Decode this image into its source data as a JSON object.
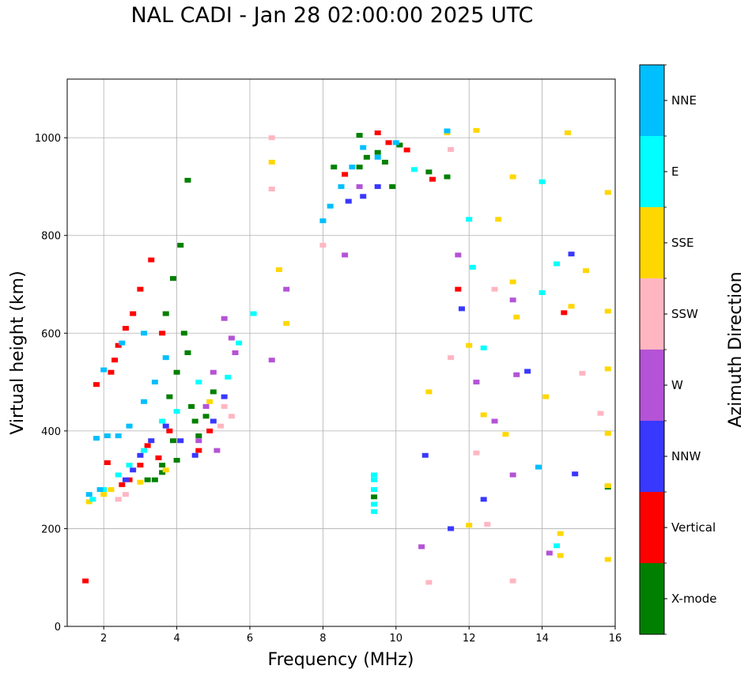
{
  "chart_data": {
    "type": "scatter",
    "title": "NAL CADI - Jan 28 02:00:00 2025 UTC",
    "xlabel": "Frequency (MHz)",
    "ylabel": "Virtual height (km)",
    "xlim": [
      1,
      16
    ],
    "ylim": [
      0,
      1120
    ],
    "xticks": [
      2,
      4,
      6,
      8,
      10,
      12,
      14,
      16
    ],
    "yticks": [
      0,
      200,
      400,
      600,
      800,
      1000
    ],
    "grid": true,
    "colorbar": {
      "label": "Azimuth Direction",
      "categories": [
        "X-mode",
        "Vertical",
        "NNW",
        "W",
        "SSW",
        "SSE",
        "E",
        "NNE"
      ],
      "colors": [
        "#008000",
        "#ff0000",
        "#3838ff",
        "#b453d6",
        "#ffb6c1",
        "#ffd700",
        "#00ffff",
        "#00bfff"
      ]
    },
    "series": [
      {
        "name": "X-mode",
        "points": [
          [
            4.1,
            780
          ],
          [
            3.9,
            712
          ],
          [
            3.7,
            640
          ],
          [
            4.2,
            600
          ],
          [
            4.3,
            560
          ],
          [
            4.0,
            520
          ],
          [
            3.8,
            470
          ],
          [
            4.4,
            450
          ],
          [
            4.5,
            420
          ],
          [
            3.9,
            380
          ],
          [
            3.6,
            330
          ],
          [
            3.4,
            300
          ],
          [
            3.2,
            300
          ],
          [
            3.6,
            315
          ],
          [
            4.0,
            340
          ],
          [
            4.6,
            390
          ],
          [
            4.8,
            430
          ],
          [
            5.0,
            480
          ],
          [
            9.0,
            940
          ],
          [
            9.2,
            960
          ],
          [
            9.5,
            970
          ],
          [
            9.7,
            950
          ],
          [
            10.1,
            985
          ],
          [
            9.9,
            900
          ],
          [
            8.3,
            940
          ],
          [
            9.0,
            1005
          ],
          [
            4.3,
            913
          ],
          [
            11.4,
            920
          ],
          [
            10.9,
            930
          ],
          [
            15.8,
            285
          ],
          [
            9.4,
            265
          ]
        ]
      },
      {
        "name": "Vertical",
        "points": [
          [
            1.5,
            93
          ],
          [
            3.3,
            750
          ],
          [
            3.0,
            690
          ],
          [
            2.8,
            640
          ],
          [
            2.6,
            610
          ],
          [
            2.4,
            575
          ],
          [
            2.3,
            545
          ],
          [
            2.2,
            520
          ],
          [
            1.8,
            495
          ],
          [
            2.1,
            335
          ],
          [
            2.5,
            290
          ],
          [
            2.7,
            300
          ],
          [
            3.0,
            330
          ],
          [
            3.2,
            370
          ],
          [
            3.5,
            345
          ],
          [
            3.8,
            400
          ],
          [
            4.6,
            360
          ],
          [
            4.9,
            400
          ],
          [
            3.6,
            600
          ],
          [
            9.5,
            1010
          ],
          [
            9.8,
            990
          ],
          [
            10.3,
            975
          ],
          [
            11.0,
            915
          ],
          [
            8.6,
            925
          ],
          [
            11.7,
            690
          ],
          [
            14.6,
            642
          ]
        ]
      },
      {
        "name": "NNW",
        "points": [
          [
            2.6,
            300
          ],
          [
            2.8,
            320
          ],
          [
            3.0,
            350
          ],
          [
            3.3,
            380
          ],
          [
            3.7,
            410
          ],
          [
            4.1,
            380
          ],
          [
            4.5,
            350
          ],
          [
            5.0,
            420
          ],
          [
            5.3,
            470
          ],
          [
            8.7,
            870
          ],
          [
            9.1,
            880
          ],
          [
            9.5,
            900
          ],
          [
            10.8,
            350
          ],
          [
            11.8,
            650
          ],
          [
            12.4,
            260
          ],
          [
            13.6,
            522
          ],
          [
            14.8,
            762
          ],
          [
            14.9,
            312
          ],
          [
            11.5,
            200
          ]
        ]
      },
      {
        "name": "W",
        "points": [
          [
            5.3,
            630
          ],
          [
            5.5,
            590
          ],
          [
            5.6,
            560
          ],
          [
            5.0,
            520
          ],
          [
            4.8,
            450
          ],
          [
            4.6,
            380
          ],
          [
            5.1,
            360
          ],
          [
            6.6,
            545
          ],
          [
            7.0,
            690
          ],
          [
            8.6,
            760
          ],
          [
            9.0,
            900
          ],
          [
            10.7,
            163
          ],
          [
            11.7,
            760
          ],
          [
            12.7,
            420
          ],
          [
            13.2,
            668
          ],
          [
            13.3,
            515
          ],
          [
            13.2,
            310
          ],
          [
            12.2,
            500
          ],
          [
            14.2,
            150
          ]
        ]
      },
      {
        "name": "SSW",
        "points": [
          [
            5.5,
            430
          ],
          [
            5.3,
            450
          ],
          [
            5.2,
            410
          ],
          [
            2.4,
            260
          ],
          [
            2.6,
            270
          ],
          [
            6.6,
            1000
          ],
          [
            6.6,
            895
          ],
          [
            10.9,
            90
          ],
          [
            11.5,
            976
          ],
          [
            12.7,
            690
          ],
          [
            13.2,
            93
          ],
          [
            15.1,
            518
          ],
          [
            15.6,
            436
          ],
          [
            12.5,
            209
          ],
          [
            12.2,
            355
          ],
          [
            11.5,
            550
          ],
          [
            8.0,
            780
          ]
        ]
      },
      {
        "name": "SSE",
        "points": [
          [
            1.6,
            255
          ],
          [
            2.0,
            270
          ],
          [
            2.2,
            280
          ],
          [
            3.0,
            295
          ],
          [
            3.7,
            320
          ],
          [
            4.9,
            460
          ],
          [
            6.6,
            950
          ],
          [
            6.8,
            730
          ],
          [
            7.0,
            620
          ],
          [
            10.9,
            480
          ],
          [
            11.4,
            1010
          ],
          [
            12.2,
            1015
          ],
          [
            12.8,
            833
          ],
          [
            13.2,
            920
          ],
          [
            13.2,
            705
          ],
          [
            13.3,
            633
          ],
          [
            13.0,
            393
          ],
          [
            14.5,
            190
          ],
          [
            14.5,
            145
          ],
          [
            14.7,
            1010
          ],
          [
            14.8,
            655
          ],
          [
            15.2,
            728
          ],
          [
            15.8,
            888
          ],
          [
            15.8,
            645
          ],
          [
            15.8,
            527
          ],
          [
            15.8,
            395
          ],
          [
            15.8,
            288
          ],
          [
            15.8,
            137
          ],
          [
            12.4,
            433
          ],
          [
            14.1,
            470
          ],
          [
            12.0,
            575
          ],
          [
            12.0,
            207
          ]
        ]
      },
      {
        "name": "E",
        "points": [
          [
            1.7,
            260
          ],
          [
            2.0,
            280
          ],
          [
            2.4,
            310
          ],
          [
            2.7,
            330
          ],
          [
            3.1,
            360
          ],
          [
            3.6,
            420
          ],
          [
            4.0,
            440
          ],
          [
            4.6,
            500
          ],
          [
            5.4,
            510
          ],
          [
            5.7,
            580
          ],
          [
            6.1,
            640
          ],
          [
            9.4,
            310
          ],
          [
            9.4,
            300
          ],
          [
            9.4,
            280
          ],
          [
            9.4,
            250
          ],
          [
            9.4,
            235
          ],
          [
            12.0,
            833
          ],
          [
            12.1,
            735
          ],
          [
            14.0,
            910
          ],
          [
            14.0,
            683
          ],
          [
            14.4,
            165
          ],
          [
            14.4,
            742
          ],
          [
            10.5,
            935
          ],
          [
            12.4,
            570
          ]
        ]
      },
      {
        "name": "NNE",
        "points": [
          [
            1.8,
            385
          ],
          [
            2.1,
            390
          ],
          [
            2.4,
            390
          ],
          [
            2.7,
            410
          ],
          [
            3.1,
            460
          ],
          [
            3.4,
            500
          ],
          [
            3.7,
            550
          ],
          [
            3.1,
            600
          ],
          [
            2.5,
            580
          ],
          [
            2.0,
            525
          ],
          [
            1.6,
            270
          ],
          [
            1.9,
            280
          ],
          [
            8.0,
            830
          ],
          [
            8.2,
            860
          ],
          [
            8.5,
            900
          ],
          [
            8.8,
            940
          ],
          [
            9.1,
            980
          ],
          [
            9.5,
            960
          ],
          [
            10.0,
            990
          ],
          [
            11.4,
            1014
          ],
          [
            13.9,
            326
          ]
        ]
      }
    ]
  }
}
